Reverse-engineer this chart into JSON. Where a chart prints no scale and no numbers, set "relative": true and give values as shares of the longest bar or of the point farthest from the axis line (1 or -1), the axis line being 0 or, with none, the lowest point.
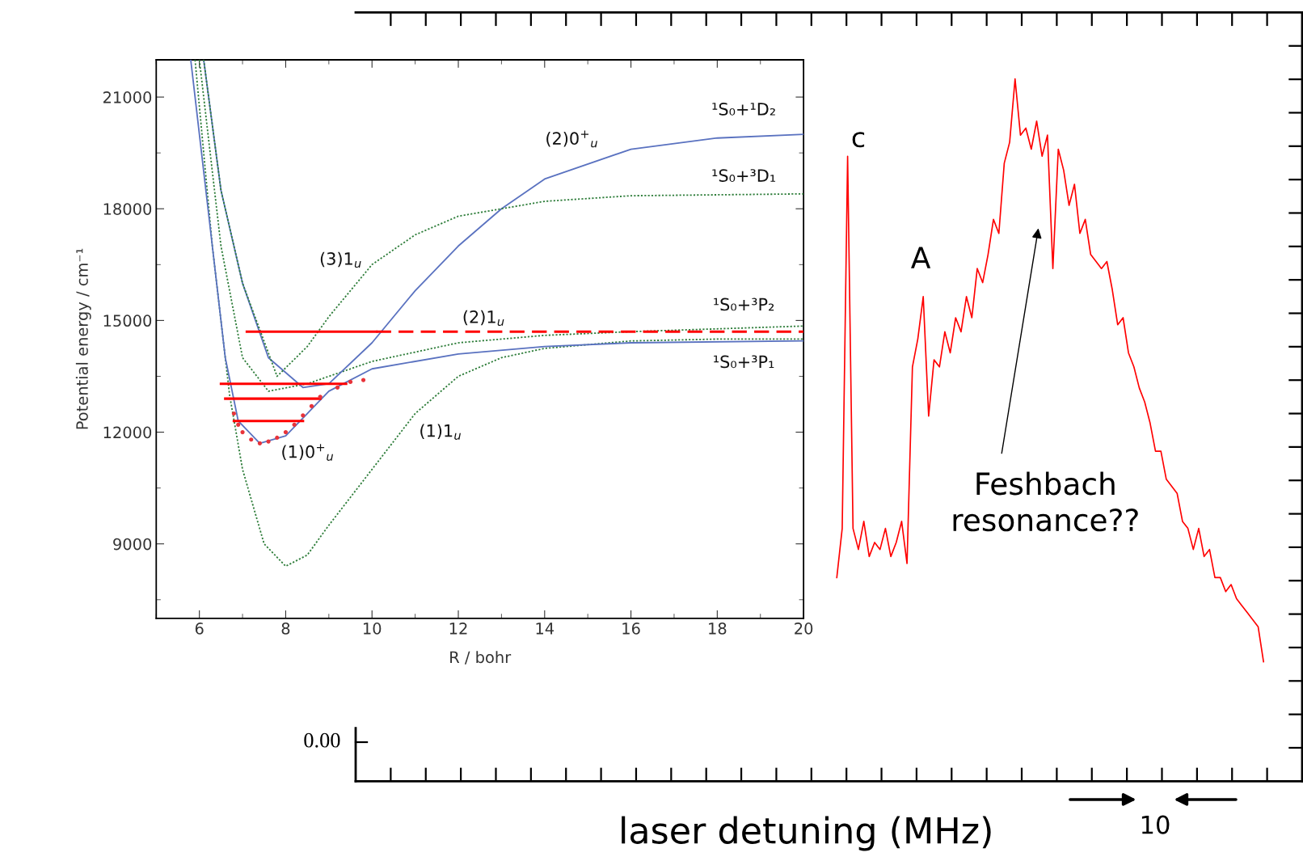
{
  "chart_data": [
    {
      "type": "line",
      "xlabel": "R / bohr",
      "ylabel": "Potential energy / cm⁻¹",
      "xlim": [
        5,
        20
      ],
      "ylim": [
        7000,
        22000
      ],
      "xticks": [
        6,
        8,
        10,
        12,
        14,
        16,
        18,
        20
      ],
      "yticks": [
        9000,
        12000,
        15000,
        18000,
        21000
      ],
      "series": [
        {
          "color": "#2e7d3a",
          "line_style": "dotted",
          "x": [
            5.9,
            6.3,
            6.7,
            7.0,
            7.5,
            8.0,
            8.5,
            9.0,
            10,
            11,
            12,
            13,
            14,
            16,
            18,
            20
          ],
          "values": [
            22000,
            17000,
            13000,
            11000,
            9000,
            8400,
            8700,
            9500,
            11000,
            12500,
            13500,
            14000,
            14250,
            14450,
            14500,
            14500
          ]
        },
        {
          "color": "#5a72c0",
          "line_style": "solid",
          "x": [
            5.8,
            6.2,
            6.6,
            6.9,
            7.4,
            8.0,
            8.5,
            9.0,
            10,
            12,
            14,
            16,
            20
          ],
          "values": [
            22000,
            18000,
            14000,
            12300,
            11700,
            11900,
            12500,
            13100,
            13700,
            14100,
            14300,
            14400,
            14450
          ]
        },
        {
          "color": "#2e7d3a",
          "line_style": "dotted",
          "x": [
            6.0,
            6.5,
            7.0,
            7.6,
            8.5,
            9.0,
            10,
            12,
            14,
            16,
            20
          ],
          "values": [
            22000,
            17000,
            14000,
            13100,
            13300,
            13500,
            13900,
            14400,
            14600,
            14700,
            14850
          ]
        },
        {
          "color": "#5a72c0",
          "line_style": "solid",
          "x": [
            6.1,
            6.5,
            7.0,
            7.6,
            8.4,
            9.0,
            10,
            11,
            12,
            13,
            14,
            16,
            18,
            20
          ],
          "values": [
            22000,
            18500,
            16000,
            14000,
            13200,
            13300,
            14400,
            15800,
            17000,
            18000,
            18800,
            19600,
            19900,
            20000
          ]
        },
        {
          "color": "#2e7d3a",
          "line_style": "dotted",
          "x": [
            6.1,
            6.5,
            7.0,
            7.8,
            8.5,
            9.0,
            10,
            11,
            12,
            13,
            14,
            16,
            20
          ],
          "values": [
            22000,
            18500,
            16000,
            13500,
            14300,
            15100,
            16500,
            17300,
            17800,
            18000,
            18200,
            18350,
            18400
          ]
        },
        {
          "color": "#ff0000",
          "line_style": "solid",
          "x": [
            7.1,
            10.1
          ],
          "values": [
            14700,
            14700
          ]
        },
        {
          "color": "#ff0000",
          "line_style": "dashed",
          "x": [
            10.1,
            20
          ],
          "values": [
            14700,
            14700
          ]
        },
        {
          "color": "#ff0000",
          "line_style": "solid",
          "x": [
            6.5,
            9.4
          ],
          "values": [
            13300,
            13300
          ]
        },
        {
          "color": "#ff0000",
          "line_style": "solid",
          "x": [
            6.6,
            8.8
          ],
          "values": [
            12900,
            12900
          ]
        },
        {
          "color": "#ff0000",
          "line_style": "solid",
          "x": [
            6.8,
            8.4
          ],
          "values": [
            12300,
            12300
          ]
        },
        {
          "type": "scatter",
          "marker": "circle",
          "color": "#e8333a",
          "x": [
            6.8,
            6.9,
            7.0,
            7.2,
            7.4,
            7.6,
            7.8,
            8.0,
            8.2,
            8.4,
            8.6,
            8.8,
            9.2,
            9.5,
            9.8
          ],
          "values": [
            12500,
            12200,
            12000,
            11800,
            11700,
            11750,
            11850,
            12000,
            12200,
            12450,
            12700,
            12950,
            13200,
            13350,
            13400
          ]
        }
      ],
      "annotations": [
        "(2)0$^{+}$$_{u}$",
        "¹S₀+¹D₂",
        "¹S₀+³D₁",
        "(3)1$_{u}$",
        "(2)1$_{u}$",
        "¹S₀+³P₂",
        "¹S₀+³P₁",
        "(1)1$_{u}$",
        "(1)0$^{+}$$_{u}$"
      ]
    },
    {
      "type": "line",
      "relative": true,
      "xlabel": "laser detuning (MHz)",
      "categories": [
        null,
        null,
        null,
        null,
        null,
        null,
        null,
        null,
        null,
        null,
        null,
        null,
        null,
        null,
        null,
        null,
        null,
        null,
        null,
        null,
        null,
        null,
        null,
        null,
        null,
        null,
        null,
        null,
        null,
        null,
        null,
        null,
        null,
        null,
        null,
        null,
        null,
        null,
        null,
        null,
        null,
        null,
        null,
        null,
        null,
        null,
        null,
        null,
        null,
        null,
        null,
        null,
        null,
        null,
        null,
        null,
        null,
        null,
        null,
        null,
        null,
        null,
        null,
        null,
        null,
        null,
        null,
        null,
        null,
        null,
        null,
        null,
        null,
        null,
        null,
        null,
        null,
        null,
        null,
        null
      ],
      "series": [
        {
          "color": "#ff0000",
          "values": [
            0.29,
            0.36,
            0.89,
            0.36,
            0.33,
            0.37,
            0.32,
            0.34,
            0.33,
            0.36,
            0.32,
            0.34,
            0.37,
            0.31,
            0.59,
            0.63,
            0.69,
            0.52,
            0.6,
            0.59,
            0.64,
            0.61,
            0.66,
            0.64,
            0.69,
            0.66,
            0.73,
            0.71,
            0.75,
            0.8,
            0.78,
            0.88,
            0.91,
            1.0,
            0.92,
            0.93,
            0.9,
            0.94,
            0.89,
            0.92,
            0.73,
            0.9,
            0.87,
            0.82,
            0.85,
            0.78,
            0.8,
            0.75,
            0.74,
            0.73,
            0.74,
            0.7,
            0.65,
            0.66,
            0.61,
            0.59,
            0.56,
            0.54,
            0.51,
            0.47,
            0.47,
            0.43,
            0.42,
            0.41,
            0.37,
            0.36,
            0.33,
            0.36,
            0.32,
            0.33,
            0.29,
            0.29,
            0.27,
            0.28,
            0.26,
            0.25,
            0.24,
            0.23,
            0.22,
            0.17
          ]
        }
      ],
      "annotations": [
        "c",
        "A",
        "Feshbach\nresonance??",
        "0.00",
        "10"
      ]
    }
  ]
}
